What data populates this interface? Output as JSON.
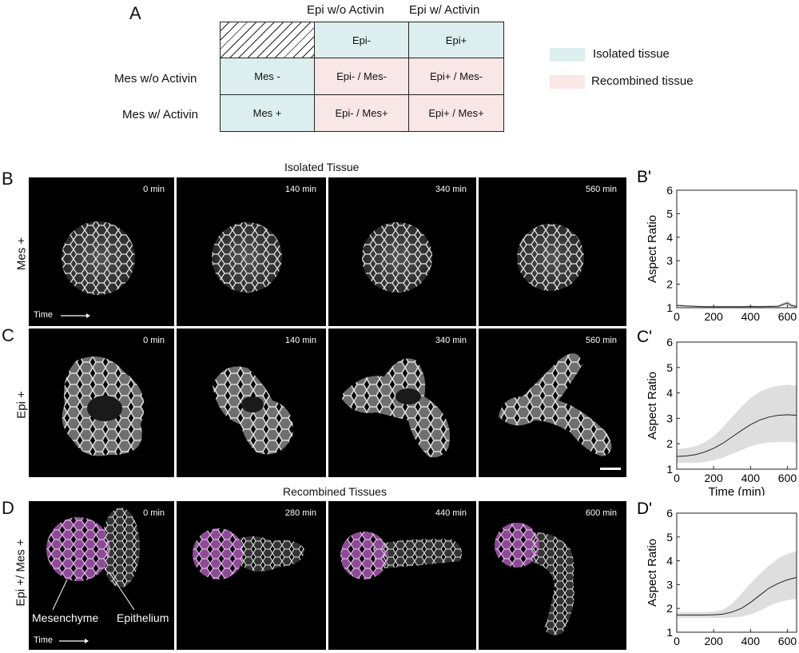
{
  "panel_a": {
    "letter": "A",
    "col_headers": [
      "Epi w/o Activin",
      "Epi w/ Activin"
    ],
    "row_headers": [
      "Mes w/o Activin",
      "Mes w/ Activin"
    ],
    "cells": {
      "top": [
        "Epi-",
        "Epi+"
      ],
      "row1": [
        "Mes -",
        "Epi- / Mes-",
        "Epi+ / Mes-"
      ],
      "row2": [
        "Mes +",
        "Epi- / Mes+",
        "Epi+ / Mes+"
      ]
    },
    "legend": [
      {
        "label": "Isolated tissue",
        "color": "#dcefee"
      },
      {
        "label": "Recombined tissue",
        "color": "#f9e6e7"
      }
    ]
  },
  "isolated_title": "Isolated Tissue",
  "recombined_title": "Recombined Tissues",
  "panel_b": {
    "letter": "B",
    "row_label": "Mes +",
    "times": [
      "0 min",
      "140 min",
      "340 min",
      "560 min"
    ],
    "time_arrow_label": "Time"
  },
  "panel_c": {
    "letter": "C",
    "row_label": "Epi +",
    "times": [
      "0 min",
      "140 min",
      "340 min",
      "560 min"
    ]
  },
  "panel_d": {
    "letter": "D",
    "row_label": "Epi +/ Mes +",
    "times": [
      "0 min",
      "280 min",
      "440 min",
      "600 min"
    ],
    "time_arrow_label": "Time",
    "annotations": [
      "Mesenchyme",
      "Epithelium"
    ],
    "mesenchyme_color": "#c77ad0"
  },
  "chart_data": [
    {
      "panel": "B'",
      "type": "line",
      "xlabel": "",
      "ylabel": "Aspect Ratio",
      "xlim": [
        0,
        650
      ],
      "ylim": [
        1,
        6
      ],
      "xticks": [
        0,
        200,
        400,
        600
      ],
      "yticks": [
        1,
        2,
        3,
        4,
        5,
        6
      ],
      "x": [
        0,
        50,
        100,
        150,
        200,
        250,
        300,
        350,
        400,
        450,
        500,
        550,
        580,
        600,
        620,
        650
      ],
      "mean": [
        1.1,
        1.07,
        1.06,
        1.04,
        1.04,
        1.04,
        1.04,
        1.04,
        1.05,
        1.04,
        1.05,
        1.06,
        1.15,
        1.2,
        1.1,
        1.05
      ],
      "upper": [
        1.15,
        1.12,
        1.1,
        1.08,
        1.08,
        1.08,
        1.08,
        1.08,
        1.1,
        1.09,
        1.1,
        1.12,
        1.22,
        1.3,
        1.2,
        1.1
      ],
      "lower": [
        1.05,
        1.03,
        1.02,
        1.0,
        1.0,
        1.0,
        1.0,
        1.0,
        1.0,
        1.0,
        1.0,
        1.0,
        1.08,
        1.1,
        1.02,
        1.0
      ]
    },
    {
      "panel": "C'",
      "type": "line",
      "xlabel": "Time (min)",
      "ylabel": "Aspect Ratio",
      "xlim": [
        0,
        650
      ],
      "ylim": [
        1,
        6
      ],
      "xticks": [
        0,
        200,
        400,
        600
      ],
      "yticks": [
        1,
        2,
        3,
        4,
        5,
        6
      ],
      "x": [
        0,
        50,
        100,
        150,
        200,
        250,
        300,
        350,
        400,
        450,
        500,
        550,
        600,
        650
      ],
      "mean": [
        1.5,
        1.52,
        1.57,
        1.67,
        1.82,
        2.02,
        2.27,
        2.52,
        2.75,
        2.93,
        3.05,
        3.12,
        3.14,
        3.12
      ],
      "upper": [
        1.8,
        1.82,
        1.9,
        2.05,
        2.3,
        2.65,
        3.05,
        3.45,
        3.8,
        4.05,
        4.2,
        4.28,
        4.32,
        4.3
      ],
      "lower": [
        1.25,
        1.25,
        1.25,
        1.28,
        1.35,
        1.45,
        1.6,
        1.75,
        1.9,
        2.0,
        2.05,
        2.07,
        2.07,
        2.05
      ]
    },
    {
      "panel": "D'",
      "type": "line",
      "xlabel": "",
      "ylabel": "Aspect Ratio",
      "xlim": [
        0,
        650
      ],
      "ylim": [
        1,
        6
      ],
      "xticks": [
        0,
        200,
        400,
        600
      ],
      "yticks": [
        1,
        2,
        3,
        4,
        5,
        6
      ],
      "x": [
        0,
        50,
        100,
        150,
        200,
        250,
        300,
        350,
        400,
        450,
        500,
        550,
        600,
        650
      ],
      "mean": [
        1.72,
        1.72,
        1.72,
        1.72,
        1.73,
        1.76,
        1.85,
        2.0,
        2.25,
        2.55,
        2.85,
        3.05,
        3.2,
        3.3
      ],
      "upper": [
        1.85,
        1.85,
        1.85,
        1.85,
        1.87,
        1.95,
        2.2,
        2.6,
        3.05,
        3.45,
        3.8,
        4.1,
        4.3,
        4.4
      ],
      "lower": [
        1.6,
        1.6,
        1.6,
        1.6,
        1.6,
        1.6,
        1.62,
        1.65,
        1.75,
        1.9,
        2.1,
        2.25,
        2.35,
        2.4
      ]
    }
  ]
}
